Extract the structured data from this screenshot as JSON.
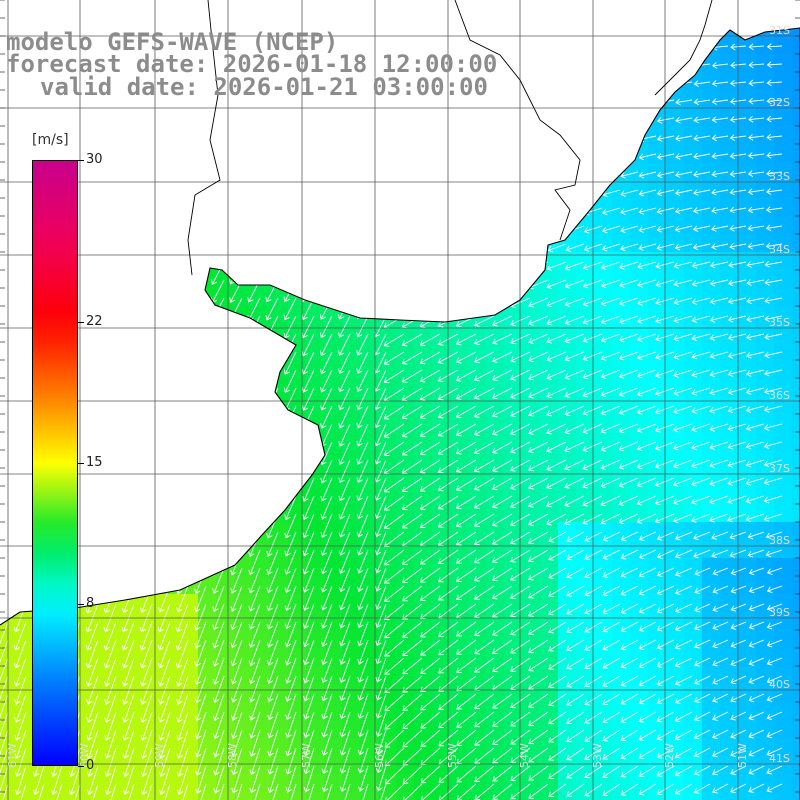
{
  "title": {
    "line1": "modelo GEFS-WAVE (NCEP)",
    "line2": "forecast date: 2026-01-18 12:00:00",
    "line3": "valid date: 2026-01-21 03:00:00"
  },
  "colorbar": {
    "unit": "[m/s]",
    "ticks": [
      "30",
      "22",
      "15",
      "8",
      "0"
    ],
    "min": 0,
    "max": 30
  },
  "grid": {
    "lat_labels": [
      "31S",
      "32S",
      "33S",
      "34S",
      "35S",
      "36S",
      "37S",
      "38S",
      "39S",
      "40S",
      "41S"
    ],
    "lon_labels": [
      "61W",
      "60W",
      "59W",
      "58W",
      "57W",
      "56W",
      "55W",
      "54W",
      "53W",
      "52W",
      "51W"
    ]
  },
  "colors": {
    "land": "#ffffff",
    "coast": "#000000",
    "grid": "#5a5a5a",
    "arrows": "#ffffff",
    "title": "#8c8c8c"
  },
  "field": {
    "variable": "wind speed",
    "arrow_direction": "toward south-west"
  }
}
